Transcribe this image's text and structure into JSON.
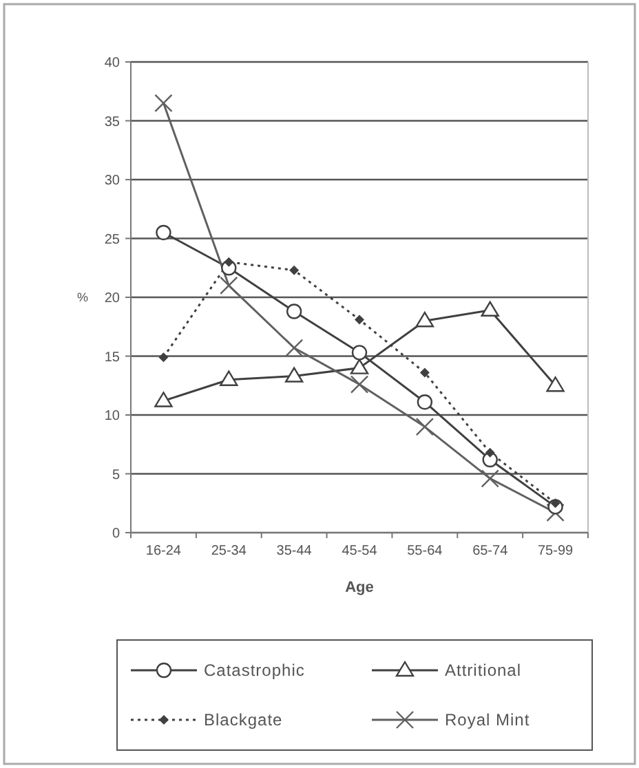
{
  "chart_data": {
    "type": "line",
    "xlabel": "Age",
    "ylabel": "%",
    "categories": [
      "16-24",
      "25-34",
      "35-44",
      "45-54",
      "55-64",
      "65-74",
      "75-99"
    ],
    "ylim": [
      0,
      40
    ],
    "yticks": [
      0,
      5,
      10,
      15,
      20,
      25,
      30,
      35,
      40
    ],
    "grid": "y",
    "legend": "bottom",
    "series": [
      {
        "name": "Catastrophic",
        "color": "#404040",
        "marker": "circle",
        "line_style": "solid",
        "values": [
          25.5,
          22.5,
          18.8,
          15.3,
          11.1,
          6.2,
          2.2
        ]
      },
      {
        "name": "Attritional",
        "color": "#404040",
        "marker": "triangle",
        "line_style": "solid",
        "values": [
          11.2,
          13,
          13.3,
          14,
          18,
          18.9,
          12.5
        ]
      },
      {
        "name": "Blackgate",
        "color": "#404040",
        "marker": "diamond",
        "line_style": "dotted",
        "values": [
          14.9,
          23,
          22.3,
          18.1,
          13.6,
          6.8,
          2.5
        ]
      },
      {
        "name": "Royal Mint",
        "color": "#606060",
        "marker": "cross",
        "line_style": "solid",
        "values": [
          36.5,
          21,
          15.7,
          12.6,
          9,
          4.6,
          1.7
        ]
      }
    ]
  }
}
